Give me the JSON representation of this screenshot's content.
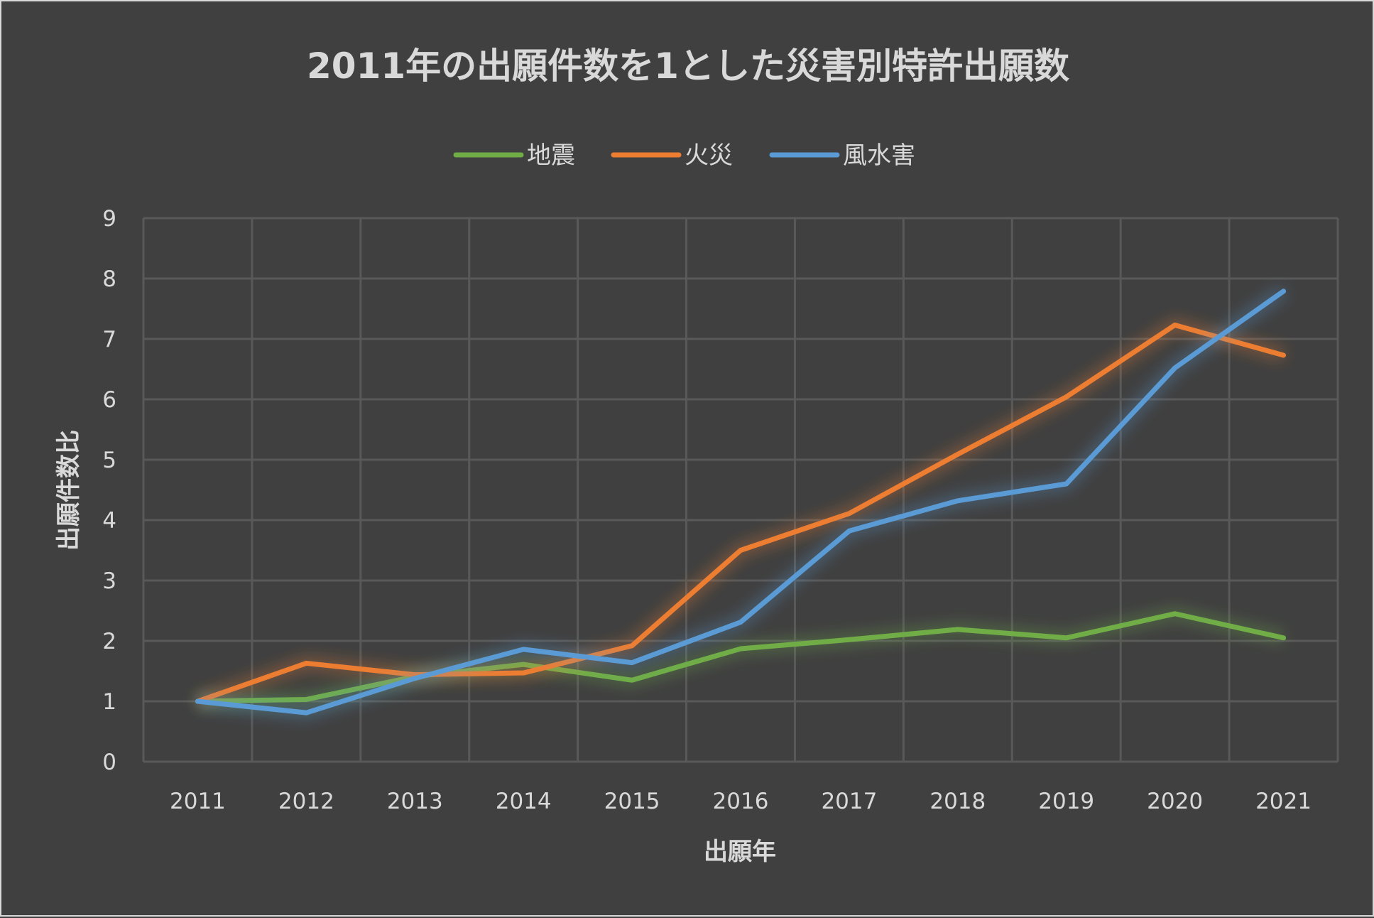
{
  "chart_data": {
    "type": "line",
    "title": "2011年の出願件数を1とした災害別特許出願数",
    "xlabel": "出願年",
    "ylabel": "出願件数比",
    "categories": [
      "2011",
      "2012",
      "2013",
      "2014",
      "2015",
      "2016",
      "2017",
      "2018",
      "2019",
      "2020",
      "2021"
    ],
    "ylim": [
      0,
      9
    ],
    "yticks": [
      "0",
      "1",
      "2",
      "3",
      "4",
      "5",
      "6",
      "7",
      "8",
      "9"
    ],
    "grid": true,
    "legend": "top",
    "series": [
      {
        "name": "地震",
        "color": "#70ad47",
        "values": [
          1,
          1.03,
          1.41,
          1.61,
          1.35,
          1.87,
          2.02,
          2.19,
          2.05,
          2.45,
          2.05
        ]
      },
      {
        "name": "火災",
        "color": "#ed7d31",
        "values": [
          1,
          1.63,
          1.44,
          1.47,
          1.92,
          3.5,
          4.11,
          5.09,
          6.04,
          7.23,
          6.73
        ]
      },
      {
        "name": "風水害",
        "color": "#5b9bd5",
        "values": [
          1,
          0.81,
          1.38,
          1.86,
          1.64,
          2.31,
          3.82,
          4.32,
          4.6,
          6.52,
          7.79
        ]
      }
    ]
  }
}
